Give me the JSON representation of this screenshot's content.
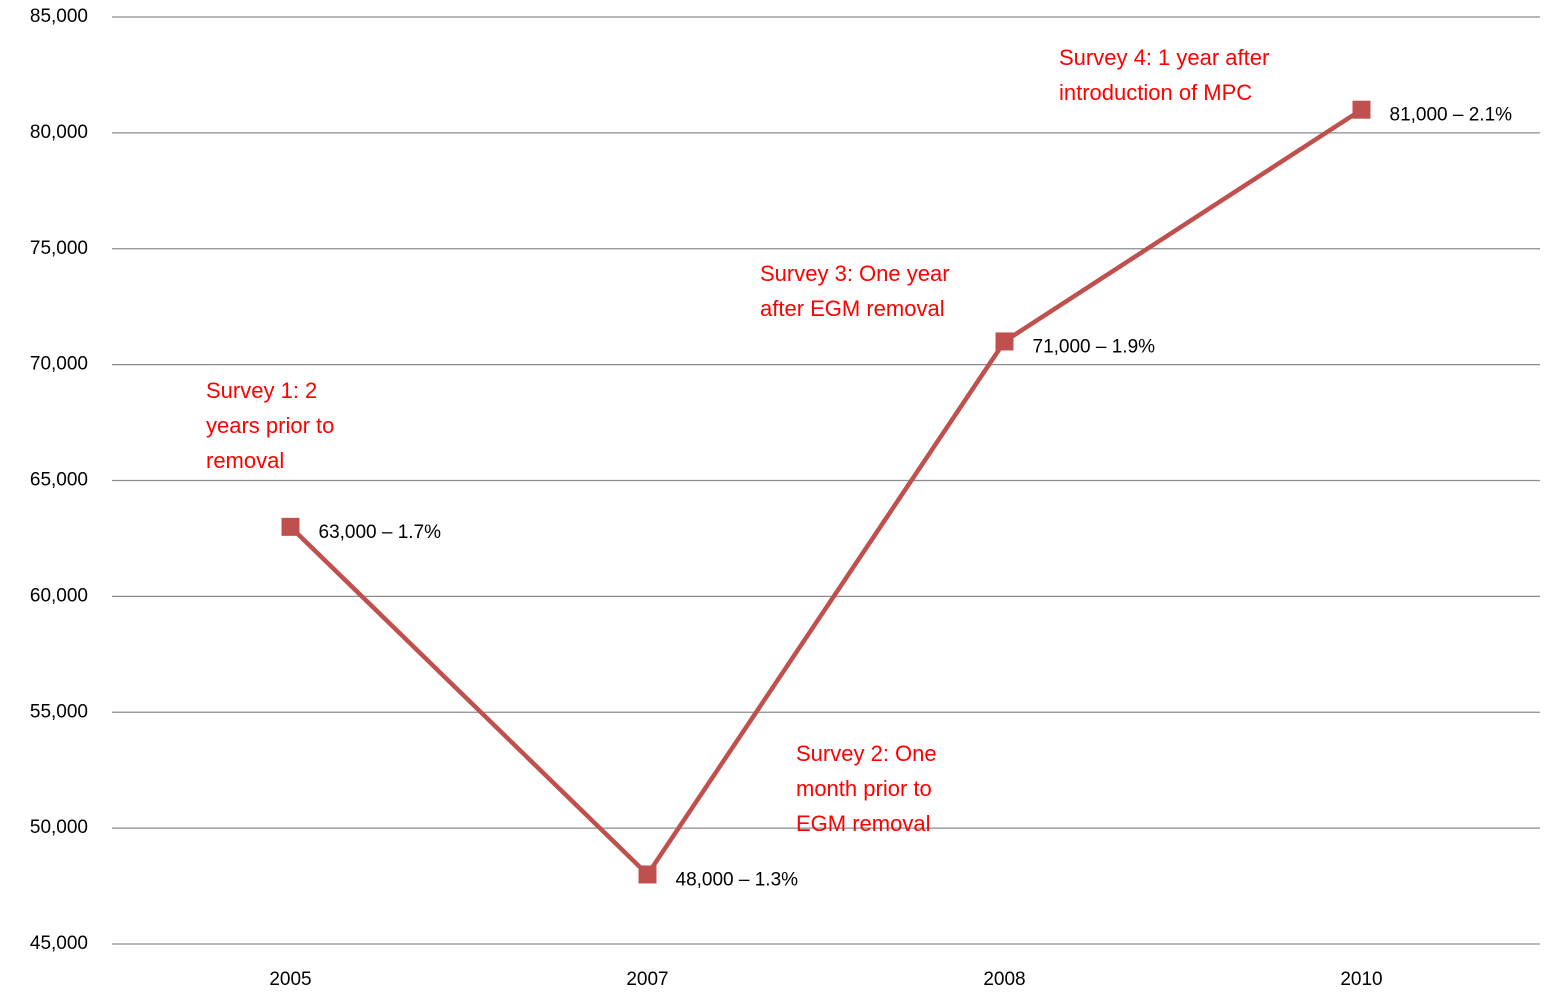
{
  "chart_data": {
    "type": "line",
    "categories": [
      "2005",
      "2007",
      "2008",
      "2010"
    ],
    "series": [
      {
        "color": "#c0504d",
        "values": [
          63000,
          48000,
          71000,
          81000
        ],
        "value_labels": [
          "63,000 – 1.7%",
          "48,000 – 1.3%",
          "71,000 – 1.9%",
          "81,000 – 2.1%"
        ]
      }
    ],
    "ylim": [
      45000,
      85000
    ],
    "yticks": [
      {
        "value": 45000,
        "label": "45,000"
      },
      {
        "value": 50000,
        "label": "50,000"
      },
      {
        "value": 55000,
        "label": "55,000"
      },
      {
        "value": 60000,
        "label": "60,000"
      },
      {
        "value": 65000,
        "label": "65,000"
      },
      {
        "value": 70000,
        "label": "70,000"
      },
      {
        "value": 75000,
        "label": "75,000"
      },
      {
        "value": 80000,
        "label": "80,000"
      },
      {
        "value": 85000,
        "label": "85,000"
      }
    ],
    "grid": true,
    "annotation_color": "#ff0000",
    "annotations": [
      {
        "lines": [
          "Survey 1: 2",
          "years prior to",
          "removal"
        ]
      },
      {
        "lines": [
          "Survey 2: One",
          "month prior to",
          "EGM removal"
        ]
      },
      {
        "lines": [
          "Survey 3: One year",
          "after EGM removal"
        ]
      },
      {
        "lines": [
          "Survey 4: 1 year after",
          "introduction of MPC"
        ]
      }
    ]
  }
}
